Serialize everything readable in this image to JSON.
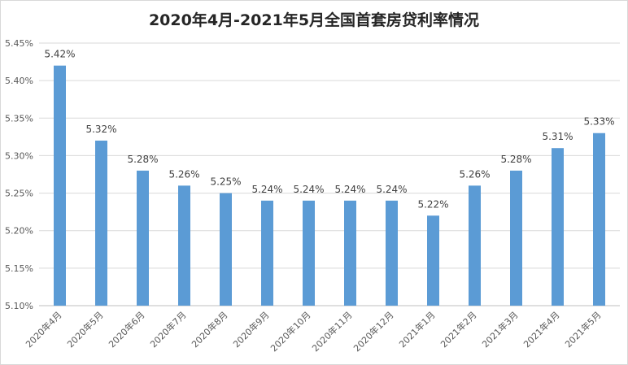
{
  "chart_data": {
    "type": "bar",
    "title": "2020年4月-2021年5月全国首套房贷利率情况",
    "xlabel": "",
    "ylabel": "",
    "categories": [
      "2020年4月",
      "2020年5月",
      "2020年6月",
      "2020年7月",
      "2020年8月",
      "2020年9月",
      "2020年10月",
      "2020年11月",
      "2020年12月",
      "2021年1月",
      "2021年2月",
      "2021年3月",
      "2021年4月",
      "2021年5月"
    ],
    "values": [
      5.42,
      5.32,
      5.28,
      5.26,
      5.25,
      5.24,
      5.24,
      5.24,
      5.24,
      5.22,
      5.26,
      5.28,
      5.31,
      5.33
    ],
    "data_labels": [
      "5.42%",
      "5.32%",
      "5.28%",
      "5.26%",
      "5.25%",
      "5.24%",
      "5.24%",
      "5.24%",
      "5.24%",
      "5.22%",
      "5.26%",
      "5.28%",
      "5.31%",
      "5.33%"
    ],
    "ylim": [
      5.1,
      5.45
    ],
    "yticks": [
      5.1,
      5.15,
      5.2,
      5.25,
      5.3,
      5.35,
      5.4,
      5.45
    ],
    "ytick_labels": [
      "5.10%",
      "5.15%",
      "5.20%",
      "5.25%",
      "5.30%",
      "5.35%",
      "5.40%",
      "5.45%"
    ],
    "grid": true,
    "legend": "none",
    "bar_color": "#5b9bd5",
    "grid_color": "#d9d9d9",
    "text_color": "#595959"
  }
}
